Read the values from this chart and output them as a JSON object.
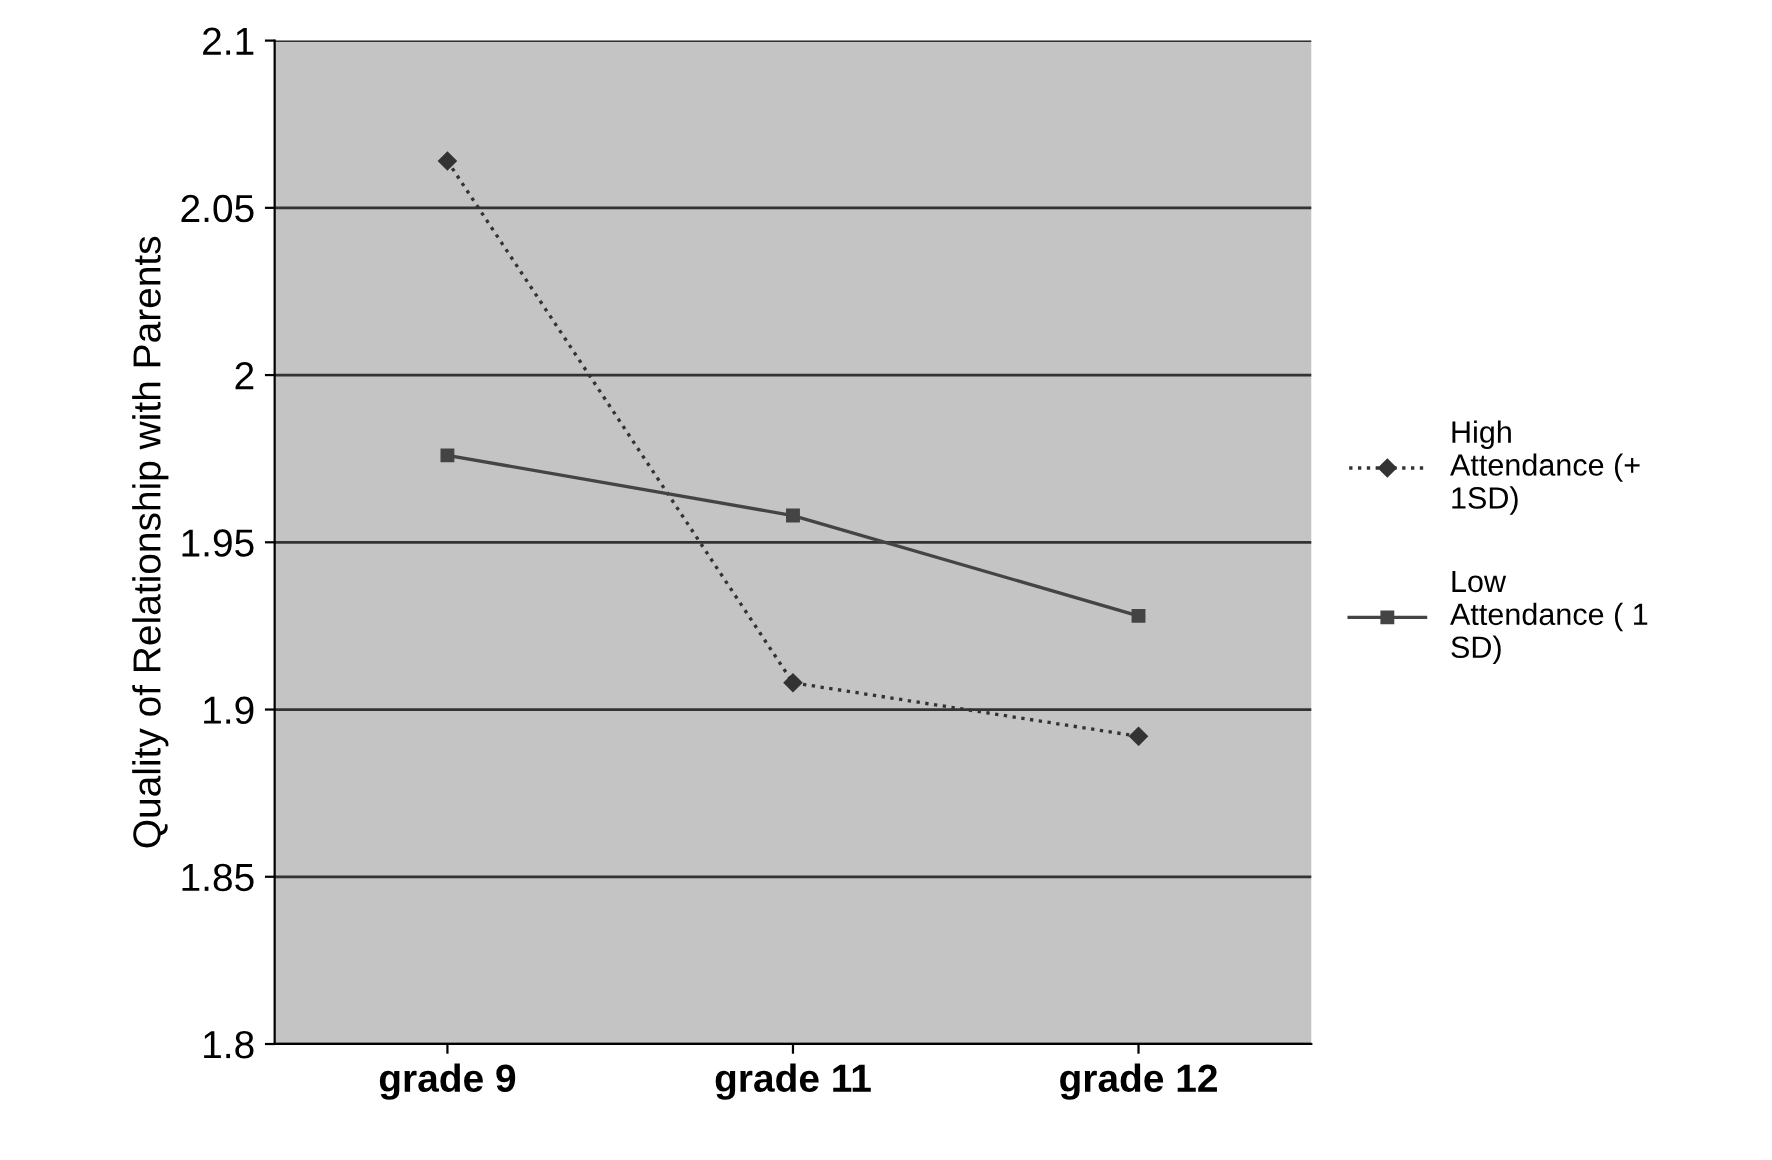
{
  "chart_data": {
    "type": "line",
    "ylabel": "Quality of Relationship with Parents",
    "categories": [
      "grade 9",
      "grade 11",
      "grade 12"
    ],
    "series": [
      {
        "name": "High\nAttendance (+\n1SD)",
        "color": "#333333",
        "values": [
          2.064,
          1.908,
          1.892
        ],
        "marker": "diamond",
        "line_style": "dotted"
      },
      {
        "name": "Low\nAttendance ( 1\nSD)",
        "color": "#444444",
        "values": [
          1.976,
          1.958,
          1.928
        ],
        "marker": "square",
        "line_style": "solid"
      }
    ],
    "ylim": [
      1.8,
      2.1
    ],
    "yticks": [
      1.8,
      1.85,
      1.9,
      1.95,
      2,
      2.05,
      2.1
    ],
    "grid": "y",
    "legend": "right"
  }
}
